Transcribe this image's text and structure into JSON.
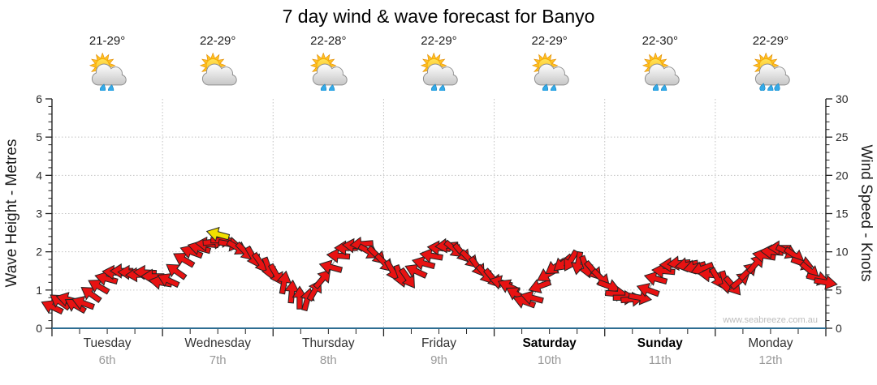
{
  "title": "7 day wind & wave forecast for Banyo",
  "watermark": "www.seabreeze.com.au",
  "days": [
    {
      "name": "Tuesday",
      "date": "6th",
      "temp": "21-29°",
      "icon": "showers",
      "bold": false
    },
    {
      "name": "Wednesday",
      "date": "7th",
      "temp": "22-29°",
      "icon": "partly-cloudy",
      "bold": false
    },
    {
      "name": "Thursday",
      "date": "8th",
      "temp": "22-28°",
      "icon": "showers",
      "bold": false
    },
    {
      "name": "Friday",
      "date": "9th",
      "temp": "22-29°",
      "icon": "showers",
      "bold": false
    },
    {
      "name": "Saturday",
      "date": "10th",
      "temp": "22-29°",
      "icon": "showers",
      "bold": true
    },
    {
      "name": "Sunday",
      "date": "11th",
      "temp": "22-30°",
      "icon": "showers",
      "bold": true
    },
    {
      "name": "Monday",
      "date": "12th",
      "temp": "22-29°",
      "icon": "heavy-showers",
      "bold": false
    }
  ],
  "chart_data": {
    "type": "line",
    "subtype": "wind-direction-arrow-band",
    "title": "7 day wind & wave forecast for Banyo",
    "left_axis": {
      "label": "Wave Height - Metres",
      "min": 0,
      "max": 6,
      "major_step": 1,
      "minor_step": 0.2
    },
    "right_axis": {
      "label": "Wind Speed - Knots",
      "min": 0,
      "max": 30,
      "major_step": 5,
      "minor_step": 1
    },
    "x_axis": {
      "categories": [
        "Tuesday",
        "Wednesday",
        "Thursday",
        "Friday",
        "Saturday",
        "Sunday",
        "Monday"
      ],
      "dates": [
        "6th",
        "7th",
        "8th",
        "9th",
        "10th",
        "11th",
        "12th"
      ],
      "minor_ticks_per_day": 4,
      "grid": "dotted at day boundaries and each metre / 5 knots"
    },
    "wind_series": {
      "name": "Wind speed & direction",
      "units": "knots",
      "t_step_days": 0.07,
      "dir_convention": "screen degrees: 0=arrow points right, 90=down, 180=left, 270=up",
      "knots": [
        2.8,
        3.5,
        3.8,
        3,
        3.3,
        4.5,
        5.5,
        6.5,
        7.3,
        7.5,
        7.3,
        7,
        7.3,
        6.8,
        6,
        6.3,
        7.5,
        9,
        10,
        10.5,
        11,
        11.3,
        11.5,
        11,
        10.5,
        10,
        9.3,
        8.5,
        7.8,
        7,
        6,
        4.8,
        4,
        3.8,
        5,
        6.5,
        8,
        9.5,
        10.5,
        10.8,
        11,
        10,
        9.5,
        8.5,
        7.5,
        6.8,
        6.5,
        7.5,
        8.5,
        9.5,
        10.5,
        10.8,
        10.3,
        9.8,
        9,
        8,
        7,
        6.5,
        6,
        5.5,
        4.5,
        3.5,
        4,
        5.5,
        7,
        8,
        8.5,
        8.8,
        8.5,
        8,
        7.5,
        6.5,
        5.5,
        4.5,
        4,
        3.8,
        4,
        5,
        6.5,
        7.5,
        8.3,
        8.5,
        8.3,
        8,
        7.8,
        7,
        6.5,
        6,
        5.5,
        6.3,
        7.5,
        8.5,
        9.5,
        10,
        10.5,
        10,
        9.5,
        8.5,
        7.5,
        6.5,
        6
      ],
      "dir_deg": [
        205,
        215,
        195,
        210,
        200,
        215,
        210,
        195,
        185,
        180,
        182,
        178,
        183,
        180,
        190,
        205,
        215,
        210,
        200,
        195,
        185,
        355,
        0,
        10,
        30,
        45,
        60,
        55,
        70,
        60,
        280,
        275,
        270,
        285,
        300,
        310,
        195,
        185,
        180,
        185,
        175,
        30,
        45,
        45,
        60,
        70,
        55,
        205,
        195,
        190,
        185,
        175,
        40,
        50,
        45,
        55,
        50,
        50,
        195,
        205,
        210,
        200,
        195,
        160,
        150,
        145,
        140,
        120,
        100,
        70,
        50,
        45,
        20,
        5,
        0,
        355,
        10,
        200,
        195,
        185,
        180,
        175,
        170,
        165,
        160,
        185,
        60,
        75,
        50,
        320,
        315,
        310,
        190,
        185,
        180,
        25,
        35,
        20,
        40,
        15,
        10
      ]
    },
    "gust_marker": {
      "t_days": 1.5,
      "knots": 12.3,
      "dir_deg": 195,
      "color": "#f2df00"
    },
    "legend": "none"
  },
  "colors": {
    "arrow": "#e81212",
    "arrow_outline": "#222222",
    "gust_arrow": "#f2df00",
    "x_axis_line": "#2d6d92",
    "y_axis_line": "#222222",
    "grid": "#c2c2c2",
    "tick_label": "#2a2a2a",
    "date_label": "#999999",
    "watermark": "#bdbdbd"
  }
}
